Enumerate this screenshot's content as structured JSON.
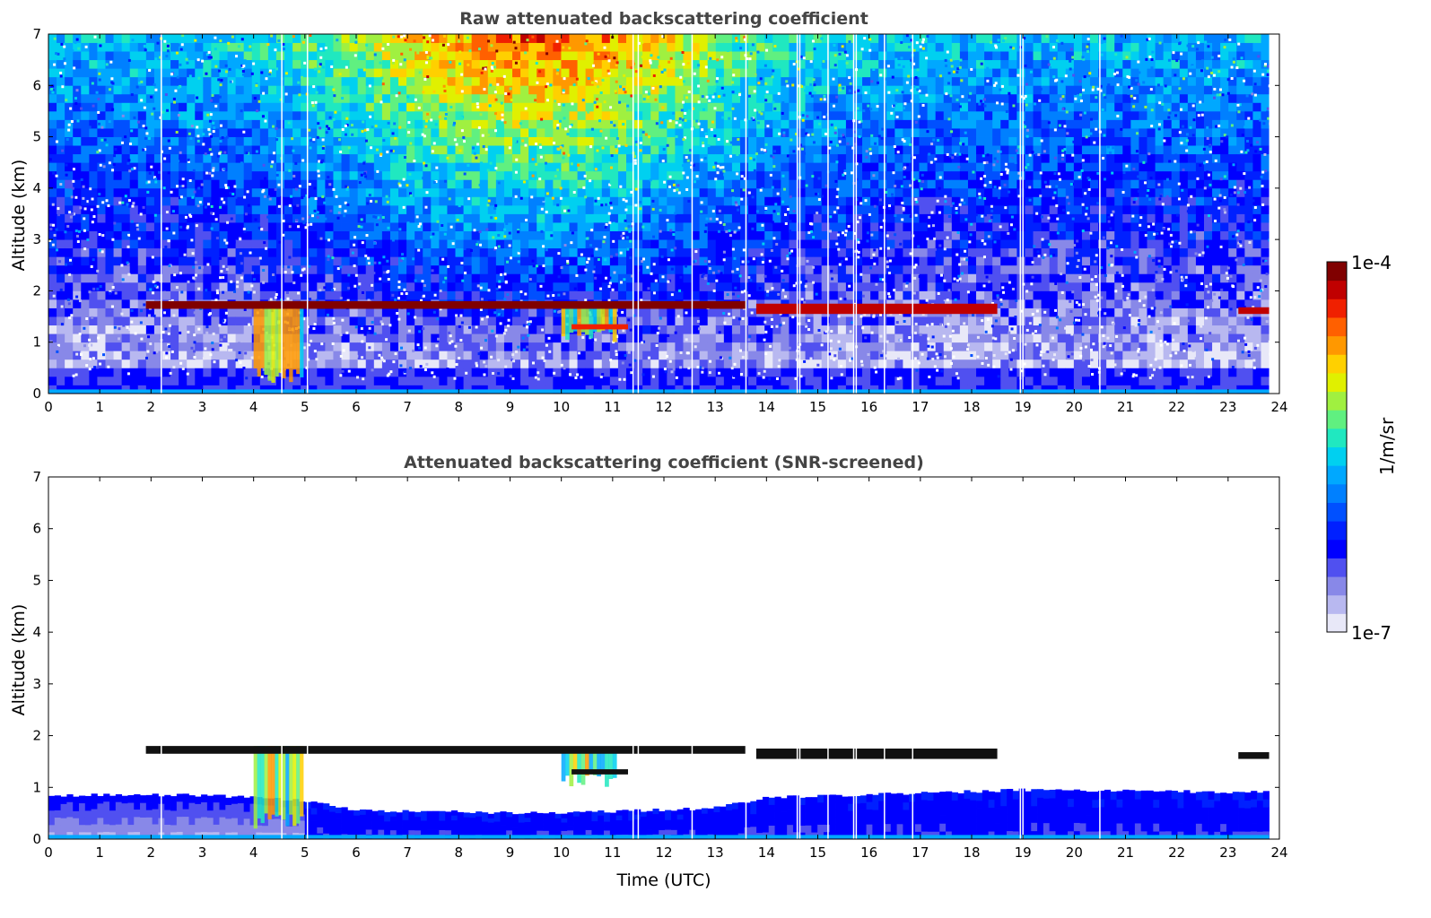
{
  "chart_data": [
    {
      "type": "heatmap",
      "title": "Raw attenuated backscattering coefficient",
      "xlabel": "",
      "ylabel": "Altitude (km)",
      "xlim": [
        0,
        24
      ],
      "ylim": [
        0,
        7
      ],
      "x_ticks": [
        "0",
        "1",
        "2",
        "3",
        "4",
        "5",
        "6",
        "7",
        "8",
        "9",
        "10",
        "11",
        "12",
        "13",
        "14",
        "15",
        "16",
        "17",
        "18",
        "19",
        "20",
        "21",
        "22",
        "23",
        "24"
      ],
      "y_ticks": [
        "0",
        "1",
        "2",
        "3",
        "4",
        "5",
        "6",
        "7"
      ],
      "data_end_time": 23.8,
      "missing_profiles_utc": [
        2.2,
        4.55,
        5.05,
        11.4,
        11.5,
        12.55,
        13.6,
        14.6,
        14.65,
        15.2,
        15.7,
        15.75,
        16.3,
        16.85,
        18.95,
        19.0,
        20.5
      ],
      "cloud_layers": [
        {
          "start": 1.9,
          "end": 13.6,
          "base_km": 1.65,
          "top_km": 1.8,
          "intensity": 1.0
        },
        {
          "start": 13.8,
          "end": 18.5,
          "base_km": 1.55,
          "top_km": 1.75,
          "intensity": 0.95
        },
        {
          "start": 23.2,
          "end": 23.8,
          "base_km": 1.55,
          "top_km": 1.68,
          "intensity": 0.95
        },
        {
          "start": 10.2,
          "end": 11.3,
          "base_km": 1.25,
          "top_km": 1.35,
          "intensity": 0.9
        }
      ],
      "precipitation": [
        {
          "start": 4.0,
          "end": 4.9,
          "from_km": 0.2,
          "to_km": 1.8
        },
        {
          "start": 10.0,
          "end": 11.0,
          "from_km": 1.0,
          "to_km": 1.7
        }
      ],
      "boundary_layer_top_km": 0.5
    },
    {
      "type": "heatmap",
      "title": "Attenuated backscattering coefficient (SNR-screened)",
      "xlabel": "Time (UTC)",
      "ylabel": "Altitude (km)",
      "xlim": [
        0,
        24
      ],
      "ylim": [
        0,
        7
      ],
      "x_ticks": [
        "0",
        "1",
        "2",
        "3",
        "4",
        "5",
        "6",
        "7",
        "8",
        "9",
        "10",
        "11",
        "12",
        "13",
        "14",
        "15",
        "16",
        "17",
        "18",
        "19",
        "20",
        "21",
        "22",
        "23",
        "24"
      ],
      "y_ticks": [
        "0",
        "1",
        "2",
        "3",
        "4",
        "5",
        "6",
        "7"
      ],
      "boundary_layer_top_profile": [
        {
          "t": 0,
          "km": 0.85
        },
        {
          "t": 3,
          "km": 0.85
        },
        {
          "t": 5,
          "km": 0.75
        },
        {
          "t": 6,
          "km": 0.55
        },
        {
          "t": 10,
          "km": 0.5
        },
        {
          "t": 13,
          "km": 0.6
        },
        {
          "t": 14,
          "km": 0.8
        },
        {
          "t": 19,
          "km": 0.95
        },
        {
          "t": 23.8,
          "km": 0.9
        }
      ]
    }
  ],
  "colorbar": {
    "label": "1/m/sr",
    "max_label": "1e-4",
    "min_label": "1e-7",
    "colors": [
      "#e8e8f8",
      "#b8b8f0",
      "#8888e8",
      "#5050f0",
      "#0000ff",
      "#0020ff",
      "#0050ff",
      "#0080ff",
      "#00a8ff",
      "#00d0f0",
      "#20e8c0",
      "#60f080",
      "#a0f040",
      "#e0f000",
      "#ffd000",
      "#ff9800",
      "#ff6000",
      "#f02000",
      "#c00000",
      "#800000"
    ]
  }
}
